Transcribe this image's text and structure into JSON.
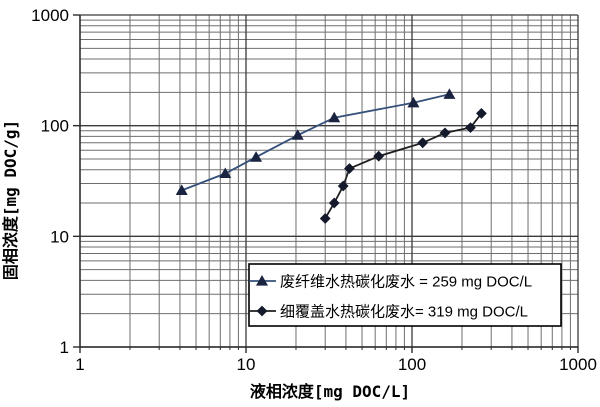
{
  "chart_data": {
    "type": "line",
    "title": "",
    "xlabel": "液相浓度[mg DOC/L]",
    "ylabel": "固相浓度[mg DOC/g]",
    "x_scale": "log",
    "y_scale": "log",
    "xlim": [
      1,
      1000
    ],
    "ylim": [
      1,
      1000
    ],
    "x_tick_labels": [
      "1",
      "10",
      "100",
      "1000"
    ],
    "y_tick_labels": [
      "1",
      "10",
      "100",
      "1000"
    ],
    "grid": "major and minor log gridlines, both axes",
    "legend_position": "inside bottom-right, white box with black border",
    "colors": {
      "grid_major": "#3a3a3a",
      "grid_minor": "#6e6e6e",
      "axis": "#2b2b2b",
      "series1_line": "#35507a",
      "series1_marker": "#1a2340",
      "series2_line": "#1f1f1f",
      "series2_marker": "#141a2b"
    },
    "series": [
      {
        "name": "废纤维水热碳化废水 = 259 mg DOC/L",
        "marker": "triangle",
        "points": [
          [
            4.1,
            26
          ],
          [
            7.5,
            37
          ],
          [
            11.5,
            52
          ],
          [
            20.5,
            82
          ],
          [
            34,
            118
          ],
          [
            102,
            161
          ],
          [
            168,
            192
          ]
        ]
      },
      {
        "name": "细覆盖水热碳化废水= 319 mg DOC/L",
        "marker": "diamond",
        "points": [
          [
            30,
            14.5
          ],
          [
            34,
            20
          ],
          [
            38.5,
            28.5
          ],
          [
            42,
            41
          ],
          [
            63,
            53
          ],
          [
            116,
            70
          ],
          [
            158,
            86
          ],
          [
            225,
            96
          ],
          [
            262,
            129
          ]
        ]
      }
    ]
  }
}
